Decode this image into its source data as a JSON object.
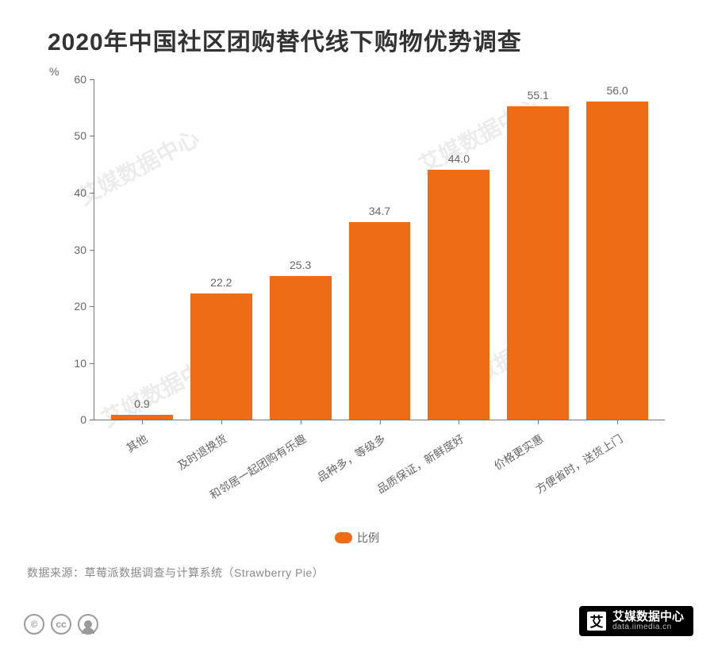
{
  "title": "2020年中国社区团购替代线下购物优势调查",
  "chart": {
    "type": "bar",
    "y_unit": "%",
    "ylim": [
      0,
      60
    ],
    "ytick_step": 10,
    "yticks": [
      0,
      10,
      20,
      30,
      40,
      50,
      60
    ],
    "categories": [
      "其他",
      "及时退换货",
      "和邻居一起团购有乐趣",
      "品种多，等级多",
      "品质保证，新鲜度好",
      "价格更实惠",
      "方便省时，送货上门"
    ],
    "values": [
      0.9,
      22.2,
      25.3,
      34.7,
      44.0,
      55.1,
      56.0
    ],
    "bar_color": "#ee6c16",
    "background_color": "#ffffff",
    "axis_color": "#777777",
    "tick_label_color": "#666666",
    "value_label_color": "#666666",
    "bar_width_ratio": 0.78,
    "label_fontsize": 14,
    "title_fontsize": 30,
    "title_color": "#333333",
    "x_label_rotation_deg": -32
  },
  "legend": {
    "label": "比例",
    "swatch_color": "#ee6c16"
  },
  "source": "数据来源：草莓派数据调查与计算系统（Strawberry Pie）",
  "footer_cc_icons": [
    "copyright-icon",
    "cc-icon",
    "attribution-icon"
  ],
  "brand": {
    "logo_text": "艾",
    "cn": "艾媒数据中心",
    "en": "data.iimedia.cn"
  },
  "watermark_text": "艾媒数据中心"
}
